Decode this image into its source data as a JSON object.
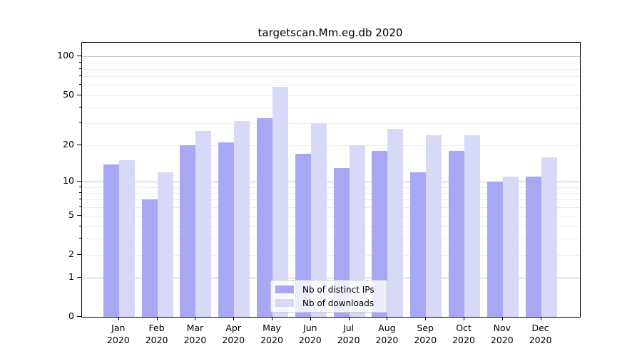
{
  "title": "targetscan.Mm.eg.db 2020",
  "chart_data": {
    "type": "bar",
    "title": "targetscan.Mm.eg.db 2020",
    "categories": [
      "Jan",
      "Feb",
      "Mar",
      "Apr",
      "May",
      "Jun",
      "Jul",
      "Aug",
      "Sep",
      "Oct",
      "Nov",
      "Dec"
    ],
    "year_label": "2020",
    "series": [
      {
        "name": "Nb of distinct IPs",
        "color": "#a7a7f4",
        "values": [
          14,
          7,
          20,
          21,
          33,
          17,
          13,
          18,
          12,
          18,
          10,
          11
        ]
      },
      {
        "name": "Nb of downloads",
        "color": "#d8d8f7",
        "values": [
          15,
          12,
          26,
          31,
          58,
          30,
          20,
          27,
          24,
          24,
          11,
          16
        ]
      }
    ],
    "scale": "log10(value+1)",
    "ylim": [
      0,
      128
    ],
    "y_ticks": [
      100,
      50,
      20,
      10,
      5,
      2,
      1,
      0
    ],
    "major_gridlines": [
      1,
      10,
      100
    ],
    "minor_gridlines": [
      2,
      3,
      4,
      5,
      6,
      7,
      8,
      9,
      20,
      30,
      40,
      50,
      60,
      70,
      80,
      90
    ],
    "grid": "horizontal",
    "legend_position": "lower center"
  },
  "legend": {
    "items": [
      "Nb of distinct IPs",
      "Nb of downloads"
    ]
  }
}
